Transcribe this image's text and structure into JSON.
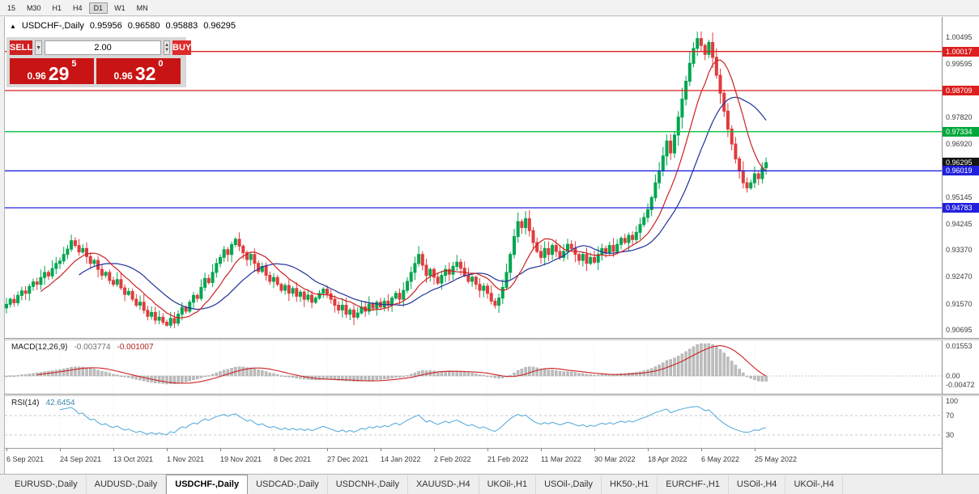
{
  "toolbar": {
    "timeframes": [
      {
        "label": "15",
        "active": false
      },
      {
        "label": "M30",
        "active": false
      },
      {
        "label": "H1",
        "active": false
      },
      {
        "label": "H4",
        "active": false
      },
      {
        "label": "D1",
        "active": true
      },
      {
        "label": "W1",
        "active": false
      },
      {
        "label": "MN",
        "active": false
      }
    ]
  },
  "chart": {
    "ohlc": {
      "symbol": "USDCHF-,Daily",
      "open": "0.95956",
      "high": "0.96580",
      "low": "0.95883",
      "close": "0.96295"
    },
    "trade_panel": {
      "sell_label": "SELL",
      "buy_label": "BUY",
      "volume": "2.00",
      "sell_price": {
        "prefix": "0.96",
        "big": "29",
        "sup": "5"
      },
      "buy_price": {
        "prefix": "0.96",
        "big": "32",
        "sup": "0"
      }
    },
    "price_axis": {
      "plain": [
        "1.00495",
        "0.99595",
        "0.97820",
        "0.96920",
        "0.95145",
        "0.94245",
        "0.93370",
        "0.92470",
        "0.91570",
        "0.90695"
      ],
      "tags": [
        {
          "text": "1.00017",
          "color": "#dd1f1f"
        },
        {
          "text": "0.98709",
          "color": "#dd1f1f"
        },
        {
          "text": "0.97334",
          "color": "#00a83c"
        },
        {
          "text": "0.96295",
          "color": "#141414"
        },
        {
          "text": "0.96019",
          "color": "#2121dd"
        },
        {
          "text": "0.94783",
          "color": "#2121dd"
        }
      ]
    },
    "hlines": [
      {
        "value": 1.00017,
        "color": "#dd1f1f"
      },
      {
        "value": 0.98709,
        "color": "#dd1f1f"
      },
      {
        "value": 0.97334,
        "color": "#00c03c"
      },
      {
        "value": 0.96019,
        "color": "#2121dd"
      },
      {
        "value": 0.94783,
        "color": "#2121dd"
      }
    ]
  },
  "macd": {
    "label": "MACD(12,26,9)",
    "value_main": "-0.003774",
    "value_signal": "-0.001007",
    "axis": [
      "0.01553",
      "0.00",
      "-0.00472"
    ]
  },
  "rsi": {
    "label": "RSI(14)",
    "value": "42.6454",
    "axis": [
      "100",
      "70",
      "30"
    ],
    "levels": [
      70,
      30
    ]
  },
  "tabs": [
    {
      "label": "EURUSD-,Daily",
      "active": false
    },
    {
      "label": "AUDUSD-,Daily",
      "active": false
    },
    {
      "label": "USDCHF-,Daily",
      "active": true
    },
    {
      "label": "USDCAD-,Daily",
      "active": false
    },
    {
      "label": "USDCNH-,Daily",
      "active": false
    },
    {
      "label": "XAUUSD-,H4",
      "active": false
    },
    {
      "label": "UKOil-,H1",
      "active": false
    },
    {
      "label": "USOil-,Daily",
      "active": false
    },
    {
      "label": "HK50-,H1",
      "active": false
    },
    {
      "label": "EURCHF-,H1",
      "active": false
    },
    {
      "label": "USOil-,H4",
      "active": false
    },
    {
      "label": "UKOil-,H4",
      "active": false
    }
  ],
  "chart_data": {
    "type": "candlestick",
    "symbol": "USDCHF",
    "timeframe": "Daily",
    "x_labels": [
      "6 Sep 2021",
      "24 Sep 2021",
      "13 Oct 2021",
      "1 Nov 2021",
      "19 Nov 2021",
      "8 Dec 2021",
      "27 Dec 2021",
      "14 Jan 2022",
      "2 Feb 2022",
      "21 Feb 2022",
      "11 Mar 2022",
      "30 Mar 2022",
      "18 Apr 2022",
      "6 May 2022",
      "25 May 2022"
    ],
    "y_range": [
      0.90695,
      1.00495
    ],
    "up_color": "#00a651",
    "down_color": "#e03c3c",
    "ma_fast": {
      "period": 10,
      "color": "#cc2222"
    },
    "ma_slow": {
      "period": 20,
      "color": "#20309a"
    },
    "closes": [
      0.9155,
      0.9172,
      0.916,
      0.9185,
      0.92,
      0.9192,
      0.9215,
      0.923,
      0.9222,
      0.9245,
      0.9262,
      0.925,
      0.9275,
      0.9292,
      0.93,
      0.9322,
      0.934,
      0.9368,
      0.9352,
      0.933,
      0.9342,
      0.9315,
      0.9292,
      0.9302,
      0.9272,
      0.9252,
      0.9262,
      0.9235,
      0.9222,
      0.9238,
      0.921,
      0.9188,
      0.9198,
      0.9172,
      0.9152,
      0.9162,
      0.9135,
      0.9115,
      0.9128,
      0.9102,
      0.9112,
      0.9095,
      0.9085,
      0.9108,
      0.9092,
      0.9122,
      0.9145,
      0.9132,
      0.9162,
      0.9185,
      0.9175,
      0.9212,
      0.9242,
      0.9228,
      0.9262,
      0.9292,
      0.9312,
      0.9338,
      0.9322,
      0.9355,
      0.9373,
      0.935,
      0.9328,
      0.9305,
      0.9322,
      0.9292,
      0.9265,
      0.9282,
      0.9252,
      0.9232,
      0.9245,
      0.9222,
      0.9202,
      0.9218,
      0.9192,
      0.9208,
      0.9182,
      0.9196,
      0.9172,
      0.9186,
      0.9162,
      0.9176,
      0.9192,
      0.9206,
      0.919,
      0.9172,
      0.9152,
      0.9136,
      0.9152,
      0.9122,
      0.9136,
      0.9112,
      0.9126,
      0.9146,
      0.9132,
      0.9156,
      0.9142,
      0.9162,
      0.9146,
      0.9166,
      0.9152,
      0.9176,
      0.9192,
      0.9172,
      0.9202,
      0.9232,
      0.9262,
      0.9292,
      0.9322,
      0.9286,
      0.9252,
      0.9272,
      0.9246,
      0.9226,
      0.9252,
      0.9272,
      0.9256,
      0.9282,
      0.9296,
      0.9276,
      0.9252,
      0.9232,
      0.9246,
      0.9222,
      0.9202,
      0.9216,
      0.9192,
      0.9166,
      0.9152,
      0.9176,
      0.9212,
      0.9262,
      0.9322,
      0.9382,
      0.9432,
      0.9412,
      0.9442,
      0.9402,
      0.9362,
      0.9332,
      0.9312,
      0.9342,
      0.9322,
      0.9352,
      0.9332,
      0.9312,
      0.9332,
      0.9356,
      0.9342,
      0.9322,
      0.9302,
      0.9322,
      0.9292,
      0.9312,
      0.9296,
      0.9322,
      0.9342,
      0.9326,
      0.9352,
      0.9332,
      0.9356,
      0.9376,
      0.9362,
      0.9386,
      0.9372,
      0.9396,
      0.9422,
      0.9446,
      0.9472,
      0.9512,
      0.9562,
      0.9602,
      0.9652,
      0.9702,
      0.9662,
      0.9722,
      0.9782,
      0.9842,
      0.9902,
      0.9962,
      1.0012,
      1.0045,
      1.0022,
      0.9992,
      1.0032,
      0.9982,
      0.9922,
      0.9862,
      0.9802,
      0.9742,
      0.9692,
      0.9642,
      0.9602,
      0.9562,
      0.9545,
      0.9562,
      0.9592,
      0.9576,
      0.9612,
      0.96295
    ],
    "indicators": {
      "macd": {
        "fast": 12,
        "slow": 26,
        "signal": 9,
        "histogram_color": "#bdbdbd",
        "signal_color": "#cc2222",
        "y_range": [
          -0.00472,
          0.01553
        ]
      },
      "rsi": {
        "period": 14,
        "color": "#4da6d9",
        "levels": [
          70,
          30
        ],
        "y_range": [
          0,
          100
        ]
      }
    }
  }
}
